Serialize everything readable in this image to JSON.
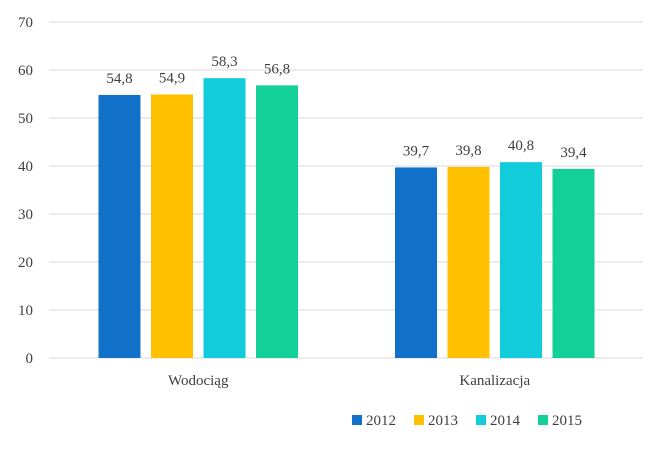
{
  "chart_data": {
    "type": "bar",
    "title": "",
    "xlabel": "",
    "ylabel": "",
    "categories": [
      "Wodociąg",
      "Kanalizacja"
    ],
    "series": [
      {
        "name": "2012",
        "color": "#1170c8",
        "values": [
          54.8,
          39.7
        ],
        "labels": [
          "54,8",
          "39,7"
        ]
      },
      {
        "name": "2013",
        "color": "#ffc000",
        "values": [
          54.9,
          39.8
        ],
        "labels": [
          "54,9",
          "39,8"
        ]
      },
      {
        "name": "2014",
        "color": "#13ccdb",
        "values": [
          58.3,
          40.8
        ],
        "labels": [
          "58,3",
          "40,8"
        ]
      },
      {
        "name": "2015",
        "color": "#13cf98",
        "values": [
          56.8,
          39.4
        ],
        "labels": [
          "56,8",
          "39,4"
        ]
      }
    ],
    "ylim": [
      0,
      70
    ],
    "yticks": [
      0,
      10,
      20,
      30,
      40,
      50,
      60,
      70
    ],
    "grid": true,
    "legend": "bottom-right"
  }
}
